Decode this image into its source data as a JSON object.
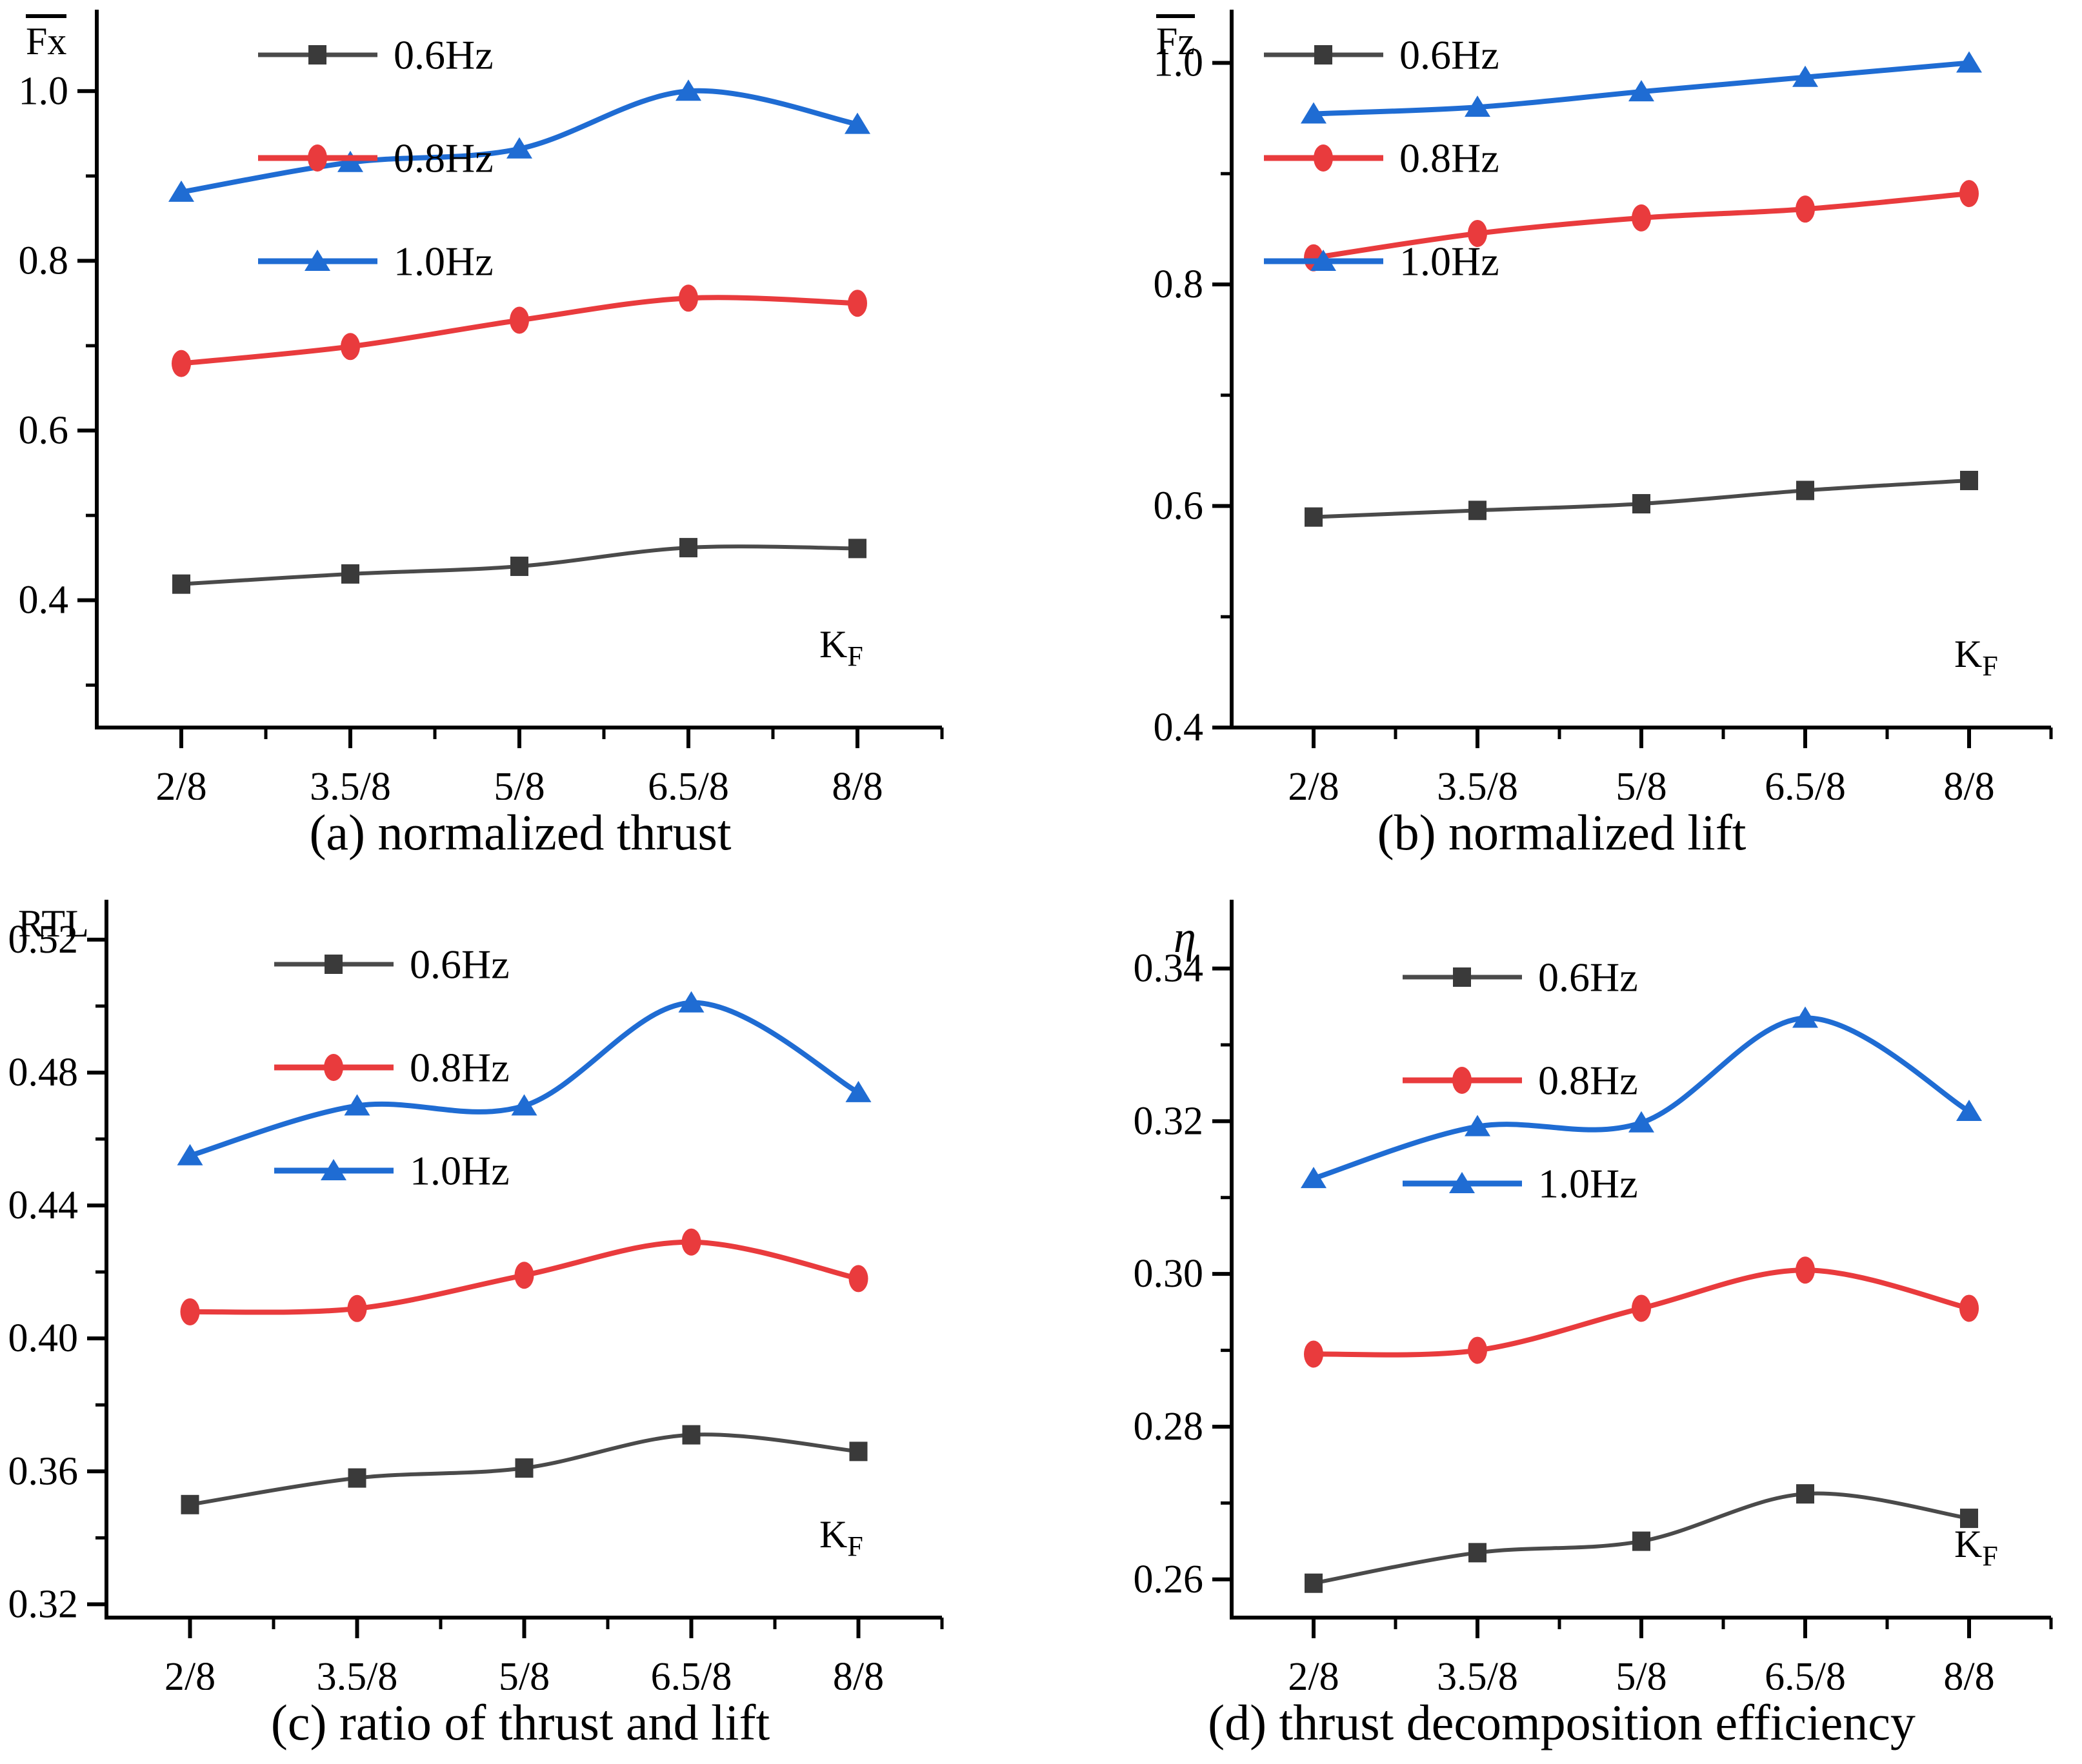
{
  "figure": {
    "x_axis_label_base": "K",
    "x_axis_label_sub": "F",
    "x_categories": [
      "2/8",
      "3.5/8",
      "5/8",
      "6.5/8",
      "8/8"
    ],
    "legend_labels": [
      "0.6Hz",
      "0.8Hz",
      "1.0Hz"
    ],
    "colors": {
      "axis": "#000000",
      "series_06_line": "#4a4a4a",
      "series_06_marker": "#3a3a3a",
      "series_08": "#e93b3d",
      "series_10": "#1f6cd3"
    },
    "markers": {
      "0.6Hz": "square",
      "0.8Hz": "circle",
      "1.0Hz": "triangle"
    }
  },
  "chart_data": [
    {
      "type": "line",
      "caption": "(a) normalized thrust",
      "ylabel": "Fx",
      "ylabel_overline": true,
      "ylabel_italic": false,
      "xlabel": "K",
      "xlabel_sub": "F",
      "x_categories": [
        "2/8",
        "3.5/8",
        "5/8",
        "6.5/8",
        "8/8"
      ],
      "ylim": [
        0.25,
        1.096
      ],
      "ytick_values": [
        0.4,
        0.6,
        0.8,
        1.0
      ],
      "ytick_labels": [
        "0.4",
        "0.6",
        "0.8",
        "1.0"
      ],
      "ytick_minor": [
        0.3,
        0.5,
        0.7,
        0.9
      ],
      "grid": false,
      "legend_position": "upper-left-inside",
      "series": [
        {
          "name": "0.6Hz",
          "values": [
            0.419,
            0.431,
            0.44,
            0.462,
            0.461
          ]
        },
        {
          "name": "0.8Hz",
          "values": [
            0.679,
            0.699,
            0.73,
            0.756,
            0.75
          ]
        },
        {
          "name": "1.0Hz",
          "values": [
            0.881,
            0.916,
            0.932,
            1.0,
            0.961
          ]
        }
      ]
    },
    {
      "type": "line",
      "caption": "(b) normalized lift",
      "ylabel": "Fz",
      "ylabel_overline": true,
      "ylabel_italic": false,
      "xlabel": "K",
      "xlabel_sub": "F",
      "x_categories": [
        "2/8",
        "3.5/8",
        "5/8",
        "6.5/8",
        "8/8"
      ],
      "ylim": [
        0.4,
        1.048
      ],
      "ytick_values": [
        0.4,
        0.6,
        0.8,
        1.0
      ],
      "ytick_labels": [
        "0.4",
        "0.6",
        "0.8",
        "1.0"
      ],
      "ytick_minor": [
        0.5,
        0.7,
        0.9
      ],
      "grid": false,
      "legend_position": "upper-left-inside",
      "series": [
        {
          "name": "0.6Hz",
          "values": [
            0.59,
            0.596,
            0.602,
            0.614,
            0.623
          ]
        },
        {
          "name": "0.8Hz",
          "values": [
            0.824,
            0.846,
            0.86,
            0.868,
            0.882
          ]
        },
        {
          "name": "1.0Hz",
          "values": [
            0.954,
            0.96,
            0.974,
            0.987,
            1.0
          ]
        }
      ]
    },
    {
      "type": "line",
      "caption": "(c) ratio of thrust and lift",
      "ylabel": "RTL",
      "ylabel_overline": false,
      "ylabel_italic": false,
      "xlabel": "K",
      "xlabel_sub": "F",
      "x_categories": [
        "2/8",
        "3.5/8",
        "5/8",
        "6.5/8",
        "8/8"
      ],
      "ylim": [
        0.316,
        0.532
      ],
      "ytick_values": [
        0.32,
        0.36,
        0.4,
        0.44,
        0.48,
        0.52
      ],
      "ytick_labels": [
        "0.32",
        "0.36",
        "0.40",
        "0.44",
        "0.48",
        "0.52"
      ],
      "ytick_minor": [
        0.34,
        0.38,
        0.42,
        0.46,
        0.5
      ],
      "grid": false,
      "legend_position": "upper-left-inside",
      "series": [
        {
          "name": "0.6Hz",
          "values": [
            0.35,
            0.358,
            0.361,
            0.371,
            0.366
          ]
        },
        {
          "name": "0.8Hz",
          "values": [
            0.408,
            0.409,
            0.419,
            0.429,
            0.418
          ]
        },
        {
          "name": "1.0Hz",
          "values": [
            0.455,
            0.47,
            0.47,
            0.501,
            0.474
          ]
        }
      ]
    },
    {
      "type": "line",
      "caption": "(d) thrust decomposition efficiency",
      "ylabel": "η",
      "ylabel_overline": false,
      "ylabel_italic": true,
      "xlabel": "K",
      "xlabel_sub": "F",
      "x_categories": [
        "2/8",
        "3.5/8",
        "5/8",
        "6.5/8",
        "8/8"
      ],
      "ylim": [
        0.255,
        0.349
      ],
      "ytick_values": [
        0.26,
        0.28,
        0.3,
        0.32,
        0.34
      ],
      "ytick_labels": [
        "0.26",
        "0.28",
        "0.30",
        "0.32",
        "0.34"
      ],
      "ytick_minor": [
        0.27,
        0.29,
        0.31,
        0.33
      ],
      "grid": false,
      "legend_position": "upper-left-inside",
      "series": [
        {
          "name": "0.6Hz",
          "values": [
            0.2595,
            0.2635,
            0.265,
            0.2712,
            0.268
          ]
        },
        {
          "name": "0.8Hz",
          "values": [
            0.2895,
            0.29,
            0.2955,
            0.3005,
            0.2955
          ]
        },
        {
          "name": "1.0Hz",
          "values": [
            0.3125,
            0.3193,
            0.3198,
            0.3335,
            0.3213
          ]
        }
      ]
    }
  ]
}
